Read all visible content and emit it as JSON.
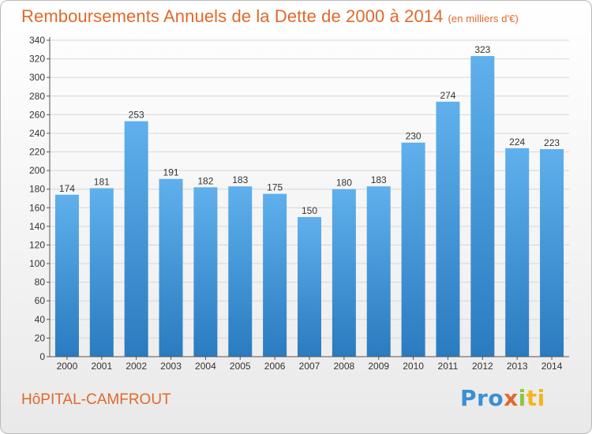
{
  "title": "Remboursements Annuels de la Dette de 2000 à 2014",
  "unit": "(en milliers d'€)",
  "city": "HôPITAL-CAMFROUT",
  "logo": [
    "Pro",
    "x",
    "i",
    "ti"
  ],
  "colors": {
    "title": "#e0692b",
    "bar_top": "#5fb0ec",
    "bar_bottom": "#2a7bc0",
    "grid": "#d6d6d6"
  },
  "chart_data": {
    "type": "bar",
    "title": "Remboursements Annuels de la Dette de 2000 à 2014",
    "categories": [
      "2000",
      "2001",
      "2002",
      "2003",
      "2004",
      "2005",
      "2006",
      "2007",
      "2008",
      "2009",
      "2010",
      "2011",
      "2012",
      "2013",
      "2014"
    ],
    "values": [
      174,
      181,
      253,
      191,
      182,
      183,
      175,
      150,
      180,
      183,
      230,
      274,
      323,
      224,
      223
    ],
    "ylim": [
      0,
      340
    ],
    "yticks": [
      0,
      20,
      40,
      60,
      80,
      100,
      120,
      140,
      160,
      180,
      200,
      220,
      240,
      260,
      280,
      300,
      320,
      340
    ],
    "grid": true
  }
}
